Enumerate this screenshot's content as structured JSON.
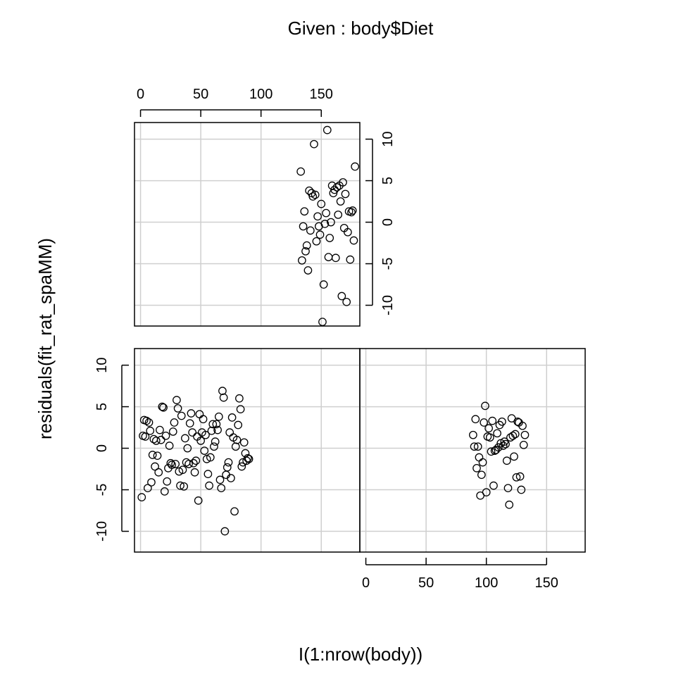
{
  "chart_data": {
    "type": "scatter",
    "title": "Given : body$Diet",
    "xlabel": "I(1:nrow(body))",
    "ylabel": "residuals(fit_rat_spaMM)",
    "xlim": [
      -5,
      182
    ],
    "ylim": [
      -12.5,
      12
    ],
    "x_ticks": [
      0,
      50,
      100,
      150
    ],
    "y_ticks": [
      -10,
      -5,
      0,
      5,
      10
    ],
    "x_tick_labels": [
      "0",
      "50",
      "100",
      "150"
    ],
    "y_tick_labels": [
      "-10",
      "-5",
      "0",
      "5",
      "10"
    ],
    "grid": true,
    "panels": [
      {
        "name": "panel-1",
        "points": [
          [
            1,
            -5.9
          ],
          [
            2,
            1.5
          ],
          [
            3,
            3.4
          ],
          [
            4,
            1.4
          ],
          [
            5,
            3.3
          ],
          [
            6,
            -4.8
          ],
          [
            7,
            3.1
          ],
          [
            8,
            2.1
          ],
          [
            9,
            -4.1
          ],
          [
            10,
            -0.8
          ],
          [
            11,
            1.1
          ],
          [
            12,
            -2.2
          ],
          [
            13,
            0.9
          ],
          [
            14,
            -0.9
          ],
          [
            15,
            -2.9
          ],
          [
            16,
            2.2
          ],
          [
            17,
            1.0
          ],
          [
            18,
            5.0
          ],
          [
            19,
            4.9
          ],
          [
            20,
            -5.2
          ],
          [
            21,
            1.5
          ],
          [
            22,
            -4.0
          ],
          [
            23,
            -2.4
          ],
          [
            24,
            0.3
          ],
          [
            25,
            -1.8
          ],
          [
            26,
            -2.0
          ],
          [
            27,
            2.0
          ],
          [
            28,
            3.1
          ],
          [
            29,
            -1.9
          ],
          [
            30,
            5.8
          ],
          [
            31,
            4.8
          ],
          [
            32,
            -2.8
          ],
          [
            33,
            -4.5
          ],
          [
            34,
            3.9
          ],
          [
            35,
            -2.6
          ],
          [
            36,
            -4.6
          ],
          [
            37,
            1.2
          ],
          [
            38,
            -1.7
          ],
          [
            39,
            0.0
          ],
          [
            40,
            -1.9
          ],
          [
            41,
            3.0
          ],
          [
            42,
            4.2
          ],
          [
            43,
            1.9
          ],
          [
            44,
            -1.8
          ],
          [
            45,
            -2.9
          ],
          [
            46,
            -1.5
          ],
          [
            47,
            1.4
          ],
          [
            48,
            -6.3
          ],
          [
            49,
            4.1
          ],
          [
            50,
            0.9
          ],
          [
            51,
            1.9
          ],
          [
            52,
            3.5
          ],
          [
            53,
            -0.3
          ],
          [
            54,
            1.6
          ],
          [
            55,
            -1.3
          ],
          [
            56,
            -3.1
          ],
          [
            57,
            -4.5
          ],
          [
            58,
            -1.1
          ],
          [
            59,
            2.1
          ],
          [
            60,
            2.9
          ],
          [
            61,
            0.2
          ],
          [
            62,
            0.8
          ],
          [
            63,
            2.9
          ],
          [
            64,
            2.2
          ],
          [
            65,
            3.8
          ],
          [
            66,
            -3.8
          ],
          [
            67,
            -4.8
          ],
          [
            68,
            6.9
          ],
          [
            69,
            6.1
          ],
          [
            70,
            -10.0
          ],
          [
            71,
            -3.2
          ],
          [
            72,
            -2.3
          ],
          [
            73,
            -1.7
          ],
          [
            74,
            1.9
          ],
          [
            75,
            -3.6
          ],
          [
            76,
            3.7
          ],
          [
            77,
            1.3
          ],
          [
            78,
            -7.6
          ],
          [
            79,
            0.2
          ],
          [
            80,
            1.0
          ],
          [
            81,
            2.8
          ],
          [
            82,
            6.0
          ],
          [
            83,
            4.7
          ],
          [
            84,
            -2.2
          ],
          [
            85,
            -1.7
          ],
          [
            86,
            0.7
          ],
          [
            87,
            -0.6
          ],
          [
            88,
            -1.5
          ],
          [
            89,
            -1.2
          ],
          [
            90,
            -1.3
          ]
        ]
      },
      {
        "name": "panel-2",
        "points": [
          [
            89,
            1.6
          ],
          [
            90,
            0.2
          ],
          [
            91,
            3.5
          ],
          [
            92,
            -2.4
          ],
          [
            93,
            0.2
          ],
          [
            94,
            -1.1
          ],
          [
            95,
            -5.7
          ],
          [
            96,
            -3.2
          ],
          [
            97,
            -1.7
          ],
          [
            98,
            3.1
          ],
          [
            99,
            5.1
          ],
          [
            100,
            -5.3
          ],
          [
            101,
            1.4
          ],
          [
            102,
            2.4
          ],
          [
            103,
            1.3
          ],
          [
            104,
            -0.4
          ],
          [
            105,
            3.3
          ],
          [
            106,
            -4.5
          ],
          [
            107,
            -0.3
          ],
          [
            108,
            -0.2
          ],
          [
            109,
            1.8
          ],
          [
            110,
            0.1
          ],
          [
            111,
            2.8
          ],
          [
            112,
            0.6
          ],
          [
            113,
            3.2
          ],
          [
            114,
            0.3
          ],
          [
            115,
            0.8
          ],
          [
            116,
            0.5
          ],
          [
            117,
            -1.5
          ],
          [
            118,
            -4.8
          ],
          [
            119,
            -6.8
          ],
          [
            120,
            1.3
          ],
          [
            121,
            3.6
          ],
          [
            122,
            1.5
          ],
          [
            123,
            -1.0
          ],
          [
            124,
            1.7
          ],
          [
            125,
            -3.5
          ],
          [
            126,
            3.2
          ],
          [
            127,
            3.1
          ],
          [
            128,
            -3.4
          ],
          [
            129,
            -5.0
          ],
          [
            130,
            2.7
          ],
          [
            131,
            0.4
          ],
          [
            132,
            1.6
          ]
        ]
      },
      {
        "name": "panel-3",
        "points": [
          [
            133,
            6.1
          ],
          [
            134,
            -4.6
          ],
          [
            135,
            -0.5
          ],
          [
            136,
            1.3
          ],
          [
            137,
            -3.5
          ],
          [
            138,
            -2.8
          ],
          [
            139,
            -5.8
          ],
          [
            140,
            3.8
          ],
          [
            141,
            -1.0
          ],
          [
            142,
            3.5
          ],
          [
            143,
            3.1
          ],
          [
            144,
            9.4
          ],
          [
            145,
            3.3
          ],
          [
            146,
            -2.3
          ],
          [
            147,
            0.7
          ],
          [
            148,
            -0.5
          ],
          [
            149,
            -1.5
          ],
          [
            150,
            2.2
          ],
          [
            151,
            -12.0
          ],
          [
            152,
            -7.5
          ],
          [
            153,
            -0.2
          ],
          [
            154,
            1.1
          ],
          [
            155,
            11.1
          ],
          [
            156,
            -4.2
          ],
          [
            157,
            -1.9
          ],
          [
            158,
            0.0
          ],
          [
            159,
            4.4
          ],
          [
            160,
            3.5
          ],
          [
            161,
            3.9
          ],
          [
            162,
            -4.3
          ],
          [
            163,
            4.2
          ],
          [
            164,
            0.9
          ],
          [
            165,
            4.4
          ],
          [
            166,
            2.5
          ],
          [
            167,
            -8.9
          ],
          [
            168,
            4.8
          ],
          [
            169,
            -0.7
          ],
          [
            170,
            3.4
          ],
          [
            171,
            -9.6
          ],
          [
            172,
            -1.2
          ],
          [
            173,
            1.3
          ],
          [
            174,
            -4.5
          ],
          [
            175,
            1.2
          ],
          [
            176,
            1.4
          ],
          [
            177,
            -2.2
          ],
          [
            178,
            6.7
          ]
        ]
      }
    ]
  }
}
